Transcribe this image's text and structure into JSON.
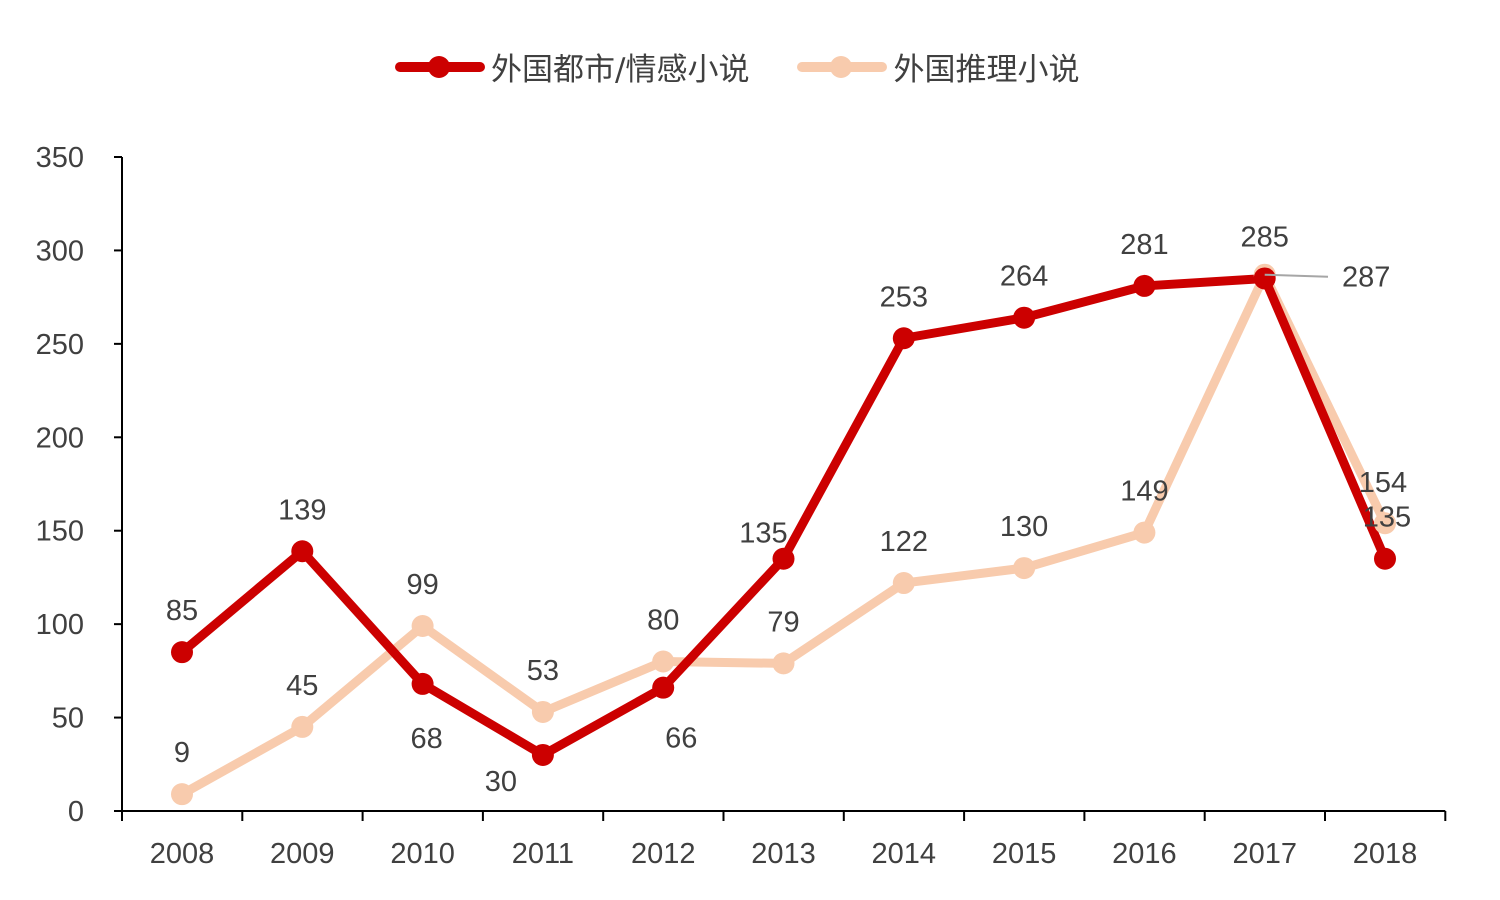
{
  "chart_data": {
    "type": "line",
    "categories": [
      "2008",
      "2009",
      "2010",
      "2011",
      "2012",
      "2013",
      "2014",
      "2015",
      "2016",
      "2017",
      "2018"
    ],
    "series": [
      {
        "name": "外国都市/情感小说",
        "color": "#cc0000",
        "values": [
          85,
          139,
          68,
          30,
          66,
          135,
          253,
          264,
          281,
          285,
          135
        ]
      },
      {
        "name": "外国推理小说",
        "color": "#f8cbad",
        "values": [
          9,
          45,
          99,
          53,
          80,
          79,
          122,
          130,
          149,
          287,
          154
        ]
      }
    ],
    "ylim": [
      0,
      350
    ],
    "yticks": [
      0,
      50,
      100,
      150,
      200,
      250,
      300,
      350
    ],
    "grid": false,
    "legend_position": "top-center",
    "data_labels": true
  }
}
